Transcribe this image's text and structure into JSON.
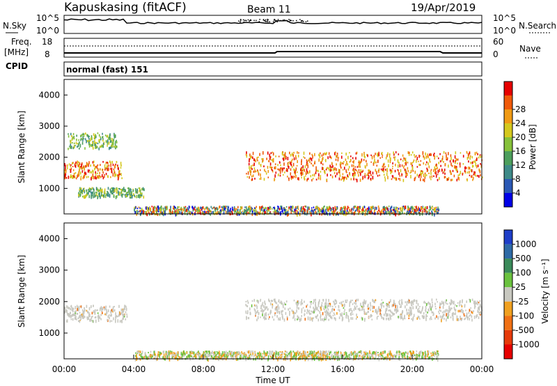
{
  "header": {
    "station": "Kapuskasing (fitACF)",
    "beam": "Beam 11",
    "date": "19/Apr/2019"
  },
  "top_panels": {
    "nsky_label": "N.Sky",
    "nsearch_label": "N.Search",
    "noise_ticks": [
      "10^5",
      "10^0"
    ],
    "freq_label": "Freq.",
    "freq_unit": "[MHz]",
    "freq_ticks": [
      "18",
      "8"
    ],
    "nave_label": "Nave",
    "nave_ticks": [
      "60",
      "0"
    ],
    "cpid_label": "CPID",
    "cpid_value": "normal (fast) 151"
  },
  "chart_data": [
    {
      "type": "heatmap",
      "panel": "power",
      "xlabel": "",
      "ylabel": "Slant Range [km]",
      "xlim_hours": [
        0,
        24
      ],
      "ylim_km": [
        180,
        4500
      ],
      "y_ticks": [
        1000,
        2000,
        3000,
        4000
      ],
      "colorbar_label": "Power [dB]",
      "colorbar_ticks": [
        "4",
        "8",
        "12",
        "16",
        "20",
        "24",
        "28"
      ],
      "colorbar_colors": [
        "#0000e6",
        "#2a58b4",
        "#3e8a88",
        "#4c9e5c",
        "#86c13a",
        "#d4c81e",
        "#f09a14",
        "#f05a0a",
        "#e60000"
      ],
      "features": [
        {
          "name": "early-band",
          "t": [
            0.0,
            3.3
          ],
          "range_km": [
            1350,
            1900
          ],
          "level": "high"
        },
        {
          "name": "lower-band",
          "t": [
            0.8,
            4.6
          ],
          "range_km": [
            760,
            1050
          ],
          "level": "mid"
        },
        {
          "name": "upper-arc",
          "t": [
            0.2,
            3.0
          ],
          "range_km": [
            2300,
            2800
          ],
          "level": "mid"
        },
        {
          "name": "ground-scatter",
          "t": [
            4.0,
            21.5
          ],
          "range_km": [
            200,
            450
          ],
          "level": "mixed"
        },
        {
          "name": "night-band",
          "t": [
            10.4,
            24.0
          ],
          "range_km": [
            1300,
            2200
          ],
          "level": "high"
        }
      ]
    },
    {
      "type": "heatmap",
      "panel": "velocity",
      "xlabel": "Time UT",
      "ylabel": "Slant Range [km]",
      "xlim_hours": [
        0,
        24
      ],
      "ylim_km": [
        180,
        4500
      ],
      "y_ticks": [
        1000,
        2000,
        3000,
        4000
      ],
      "x_ticks": [
        "00:00",
        "04:00",
        "08:00",
        "12:00",
        "16:00",
        "20:00",
        "00:00"
      ],
      "colorbar_label": "Velocity [m s⁻¹]",
      "colorbar_ticks": [
        "1000",
        "500",
        "100",
        "25",
        "-25",
        "-100",
        "-500",
        "-1000"
      ],
      "colorbar_colors": [
        "#1e3ec8",
        "#2e6aa6",
        "#3a8a5a",
        "#6ac23e",
        "#c8c8c0",
        "#f0a020",
        "#f07014",
        "#e63a0a",
        "#e60000"
      ],
      "features": [
        {
          "name": "gs-band",
          "t": [
            0.0,
            3.6
          ],
          "range_km": [
            1400,
            1900
          ],
          "level": "gs"
        },
        {
          "name": "gs-night",
          "t": [
            10.4,
            24.0
          ],
          "range_km": [
            1450,
            2100
          ],
          "level": "gs"
        },
        {
          "name": "near-range",
          "t": [
            4.0,
            21.5
          ],
          "range_km": [
            200,
            450
          ],
          "level": "slow"
        }
      ]
    }
  ]
}
